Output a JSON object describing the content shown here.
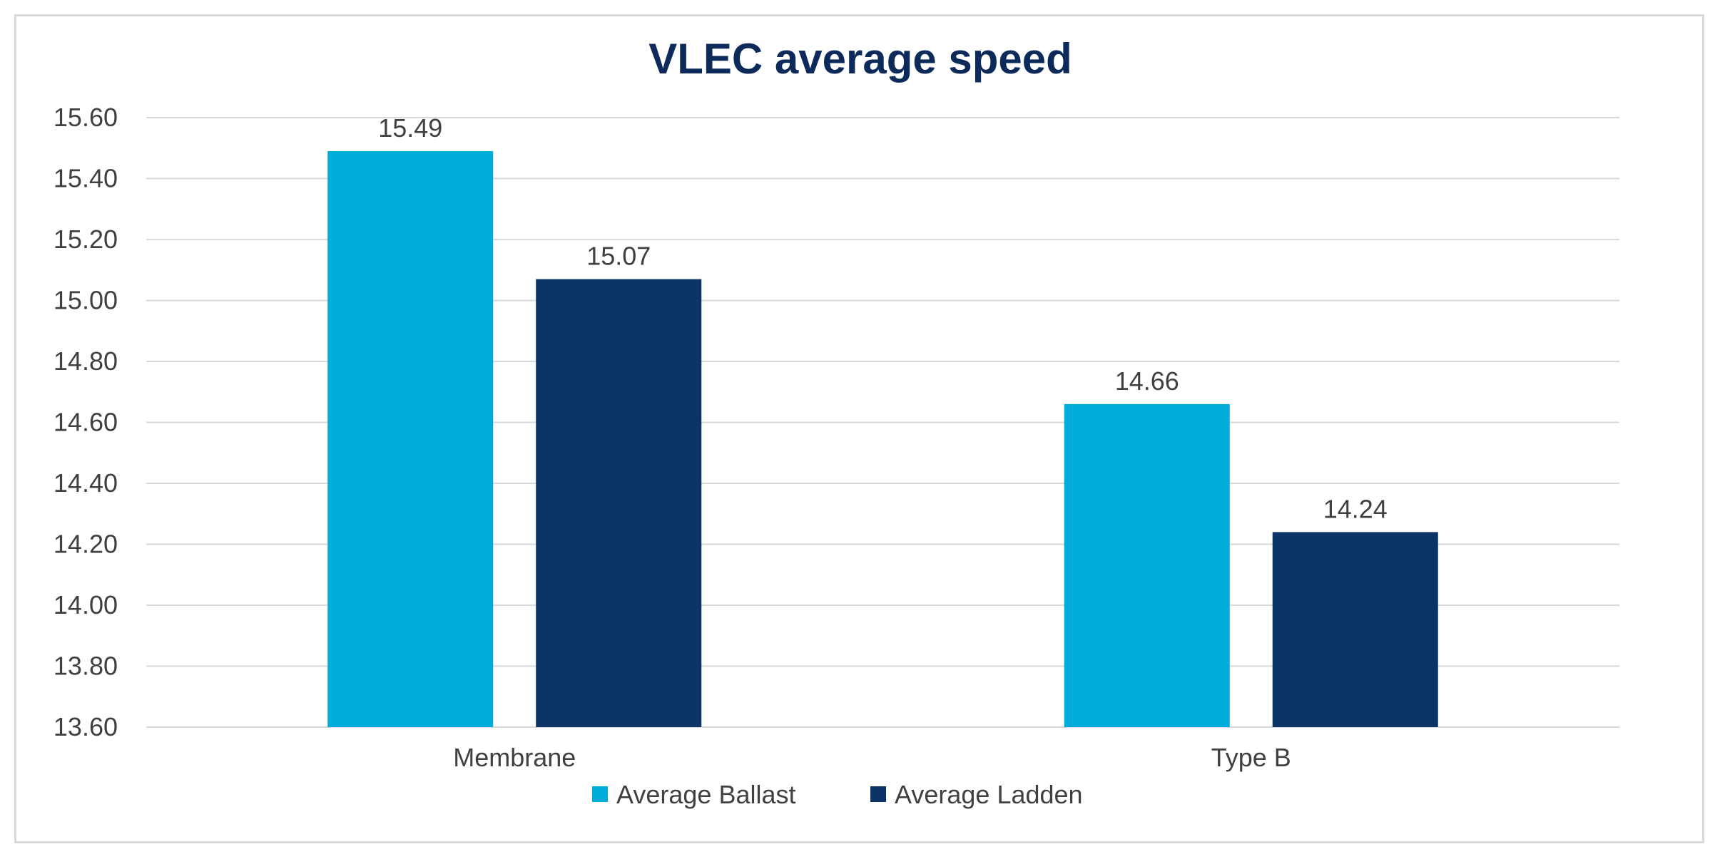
{
  "chart_data": {
    "type": "bar",
    "title": "VLEC average speed",
    "categories": [
      "Membrane",
      "Type B"
    ],
    "series": [
      {
        "name": "Average Ballast",
        "values": [
          15.49,
          14.66
        ],
        "color": "#00acd9"
      },
      {
        "name": "Average  Ladden",
        "values": [
          15.07,
          14.24
        ],
        "color": "#0d3466"
      }
    ],
    "ylim": [
      13.6,
      15.6
    ],
    "yticks": [
      "13.60",
      "13.80",
      "14.00",
      "14.20",
      "14.40",
      "14.60",
      "14.80",
      "15.00",
      "15.20",
      "15.40",
      "15.60"
    ],
    "data_labels": [
      [
        "15.49",
        "14.66"
      ],
      [
        "15.07",
        "14.24"
      ]
    ],
    "xlabel": "",
    "ylabel": "",
    "grid": true,
    "legend_position": "bottom"
  }
}
